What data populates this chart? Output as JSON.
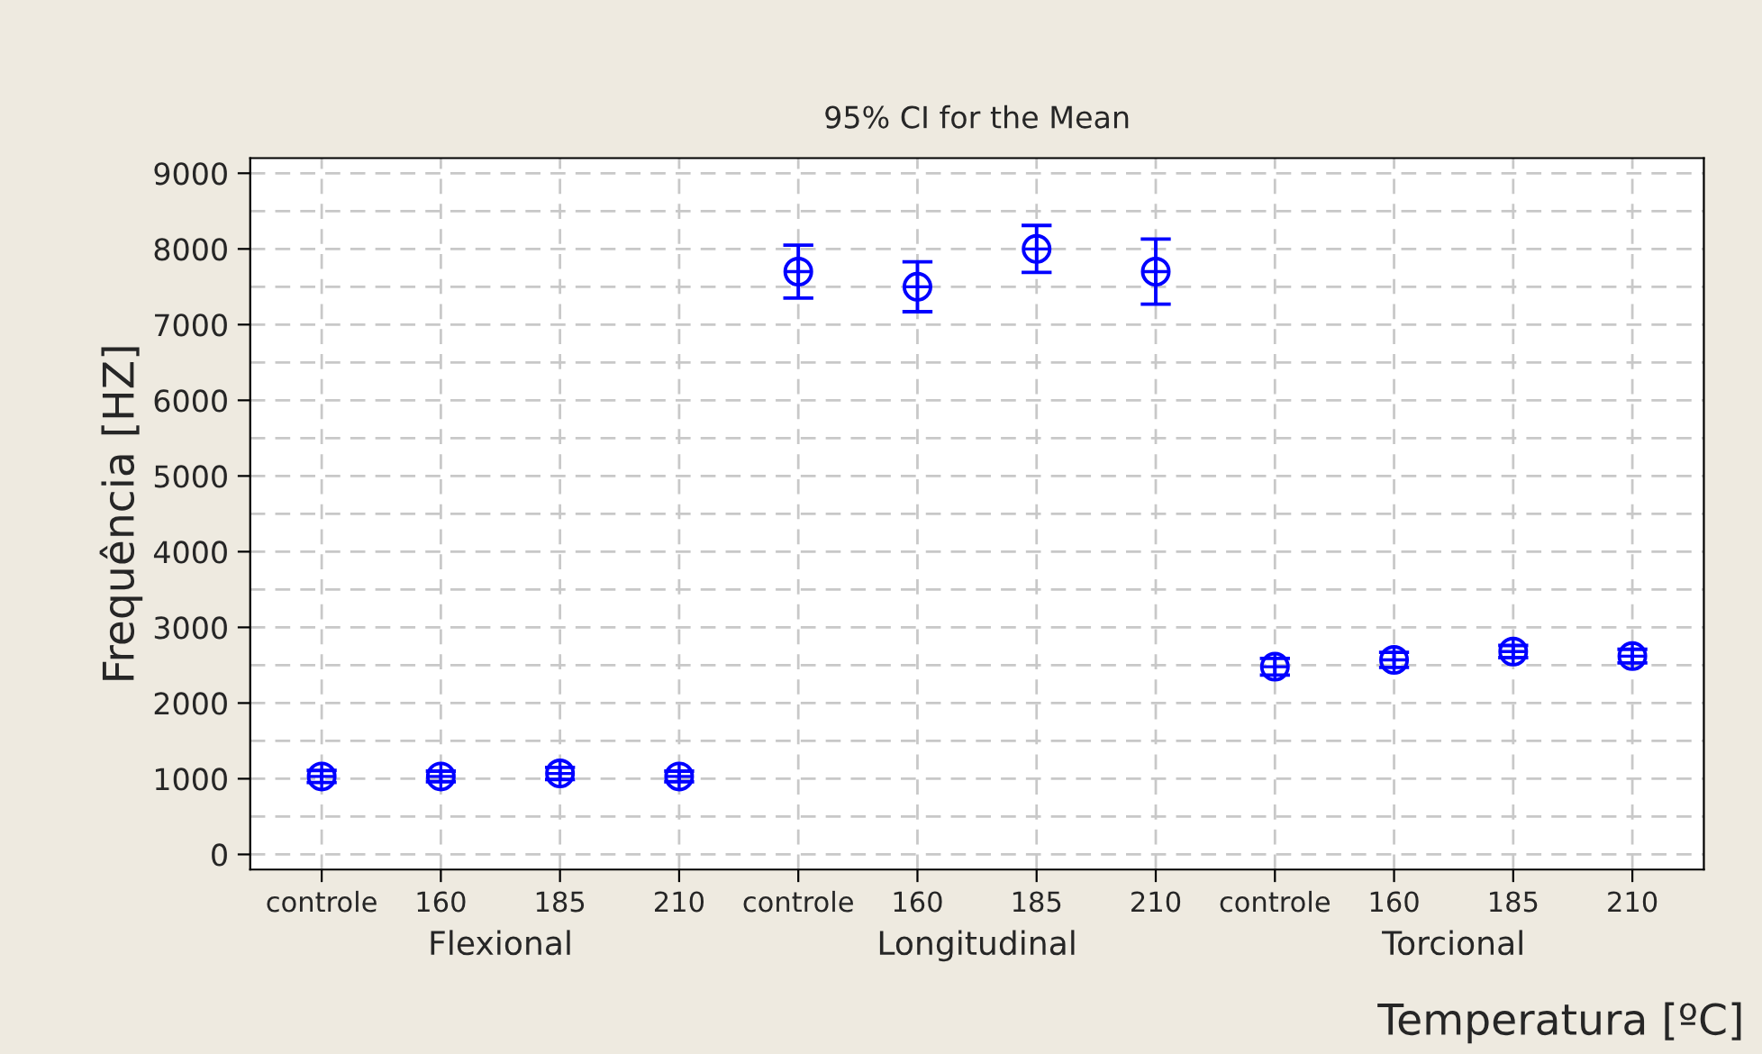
{
  "chart_data": {
    "type": "scatter",
    "title": "95% CI for the Mean",
    "xlabel": "Temperatura [ºC]",
    "ylabel": "Frequência [HZ]",
    "categories": [
      "controle",
      "160",
      "185",
      "210",
      "controle",
      "160",
      "185",
      "210",
      "controle",
      "160",
      "185",
      "210"
    ],
    "values": [
      1030,
      1030,
      1070,
      1030,
      7700,
      7500,
      8000,
      7700,
      2480,
      2570,
      2680,
      2620
    ],
    "errors": [
      80,
      70,
      80,
      70,
      350,
      330,
      310,
      430,
      110,
      100,
      80,
      90
    ],
    "color": "#0000ff",
    "marker": "circle",
    "annotations": [
      "Flexional",
      "Longitudinal",
      "Torcional"
    ],
    "ylim": [
      -200,
      9200
    ],
    "yticks": [
      0,
      1000,
      2000,
      3000,
      4000,
      5000,
      6000,
      7000,
      8000,
      9000
    ],
    "grid": true
  }
}
